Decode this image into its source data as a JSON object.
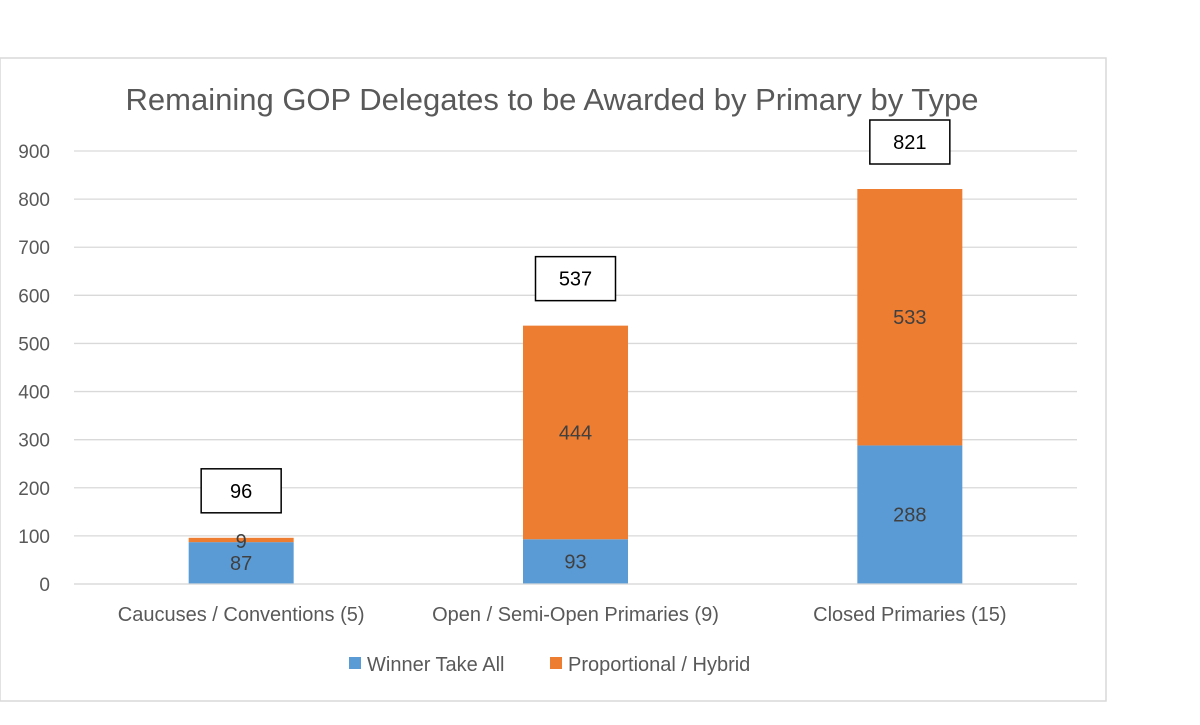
{
  "chart_data": {
    "type": "bar",
    "stacked": true,
    "title": "Remaining GOP Delegates to be Awarded by Primary by Type",
    "categories": [
      "Caucuses / Conventions (5)",
      "Open / Semi-Open Primaries (9)",
      "Closed Primaries (15)"
    ],
    "series": [
      {
        "name": "Winner Take All",
        "color": "#5B9BD5",
        "values": [
          87,
          93,
          288
        ]
      },
      {
        "name": "Proportional / Hybrid",
        "color": "#ED7D31",
        "values": [
          9,
          444,
          533
        ]
      }
    ],
    "totals": [
      96,
      537,
      821
    ],
    "ylim": [
      0,
      900
    ],
    "yticks": [
      0,
      100,
      200,
      300,
      400,
      500,
      600,
      700,
      800,
      900
    ],
    "grid": true,
    "legend": "bottom",
    "xlabel": "",
    "ylabel": ""
  }
}
